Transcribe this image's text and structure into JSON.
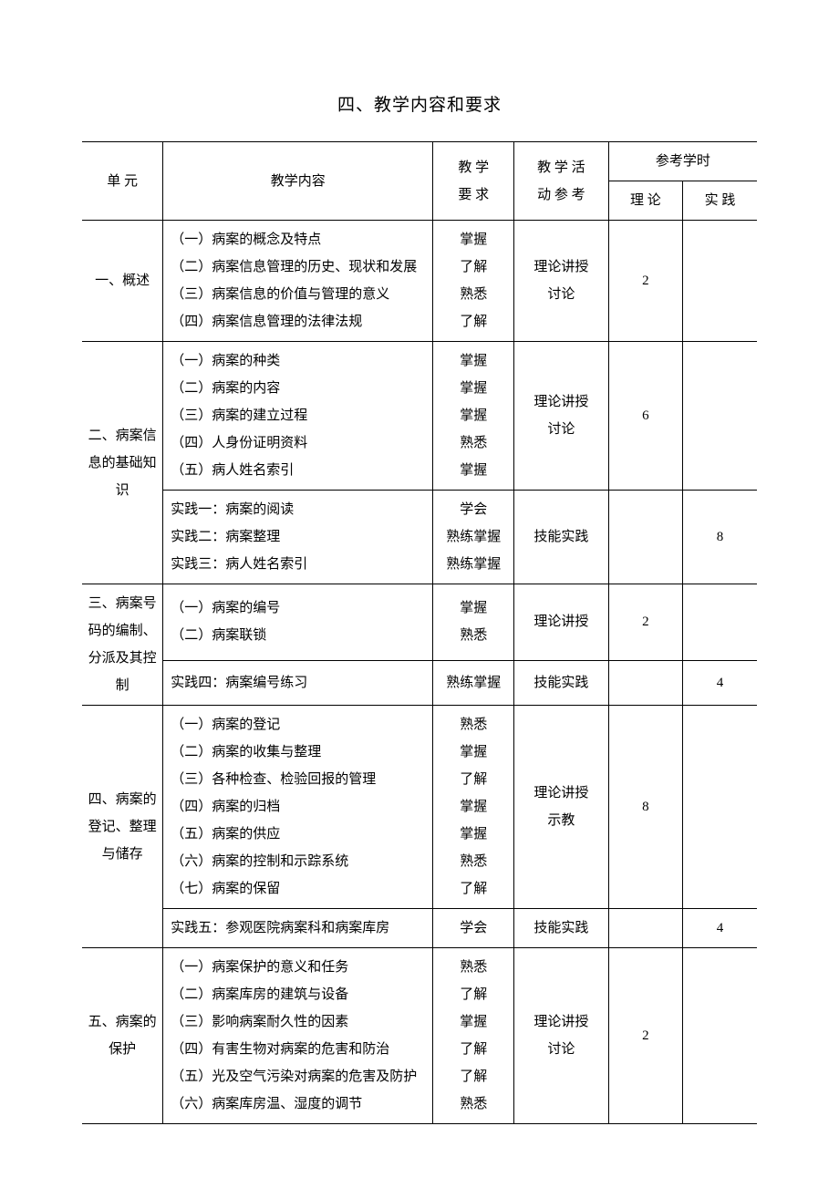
{
  "title": "四、教学内容和要求",
  "header": {
    "unit": "单 元",
    "content": "教学内容",
    "req": "教 学\n要 求",
    "act": "教 学 活\n动 参 考",
    "hours": "参考学时",
    "theory": "理 论",
    "practice": "实 践"
  },
  "units": [
    {
      "name": "一、概述",
      "blocks": [
        {
          "content": "（一）病案的概念及特点\n（二）病案信息管理的历史、现状和发展\n（三）病案信息的价值与管理的意义\n（四）病案信息管理的法律法规",
          "req": "掌握\n了解\n熟悉\n了解",
          "act": "理论讲授\n讨论",
          "theory": "2",
          "practice": ""
        }
      ]
    },
    {
      "name": "二、病案信息的基础知识",
      "blocks": [
        {
          "content": "（一）病案的种类\n（二）病案的内容\n（三）病案的建立过程\n（四）人身份证明资料\n（五）病人姓名索引",
          "req": "掌握\n掌握\n掌握\n熟悉\n掌握",
          "act": "理论讲授\n讨论",
          "theory": "6",
          "practice": ""
        },
        {
          "content": "实践一：病案的阅读\n实践二：病案整理\n实践三：病人姓名索引",
          "req": "学会\n熟练掌握\n熟练掌握",
          "act": "技能实践",
          "theory": "",
          "practice": "8"
        }
      ]
    },
    {
      "name": "三、病案号码的编制、分派及其控制",
      "blocks": [
        {
          "content": "（一）病案的编号\n（二）病案联锁",
          "req": "掌握\n熟悉",
          "act": "理论讲授",
          "theory": "2",
          "practice": ""
        },
        {
          "content": "实践四：病案编号练习",
          "req": "熟练掌握",
          "act": "技能实践",
          "theory": "",
          "practice": "4"
        }
      ]
    },
    {
      "name": "四、病案的登记、整理与储存",
      "blocks": [
        {
          "content": "（一）病案的登记\n（二）病案的收集与整理\n（三）各种检查、检验回报的管理\n（四）病案的归档\n（五）病案的供应\n（六）病案的控制和示踪系统\n（七）病案的保留",
          "req": "熟悉\n掌握\n了解\n掌握\n掌握\n熟悉\n了解",
          "act": "理论讲授\n示教",
          "theory": "8",
          "practice": ""
        },
        {
          "content": "实践五：参观医院病案科和病案库房",
          "req": "学会",
          "act": "技能实践",
          "theory": "",
          "practice": "4"
        }
      ]
    },
    {
      "name": "五、病案的保护",
      "blocks": [
        {
          "content": "（一）病案保护的意义和任务\n（二）病案库房的建筑与设备\n（三）影响病案耐久性的因素\n（四）有害生物对病案的危害和防治\n（五）光及空气污染对病案的危害及防护\n（六）病案库房温、湿度的调节",
          "req": "熟悉\n了解\n掌握\n了解\n了解\n熟悉",
          "act": "理论讲授\n讨论",
          "theory": "2",
          "practice": ""
        }
      ]
    }
  ]
}
